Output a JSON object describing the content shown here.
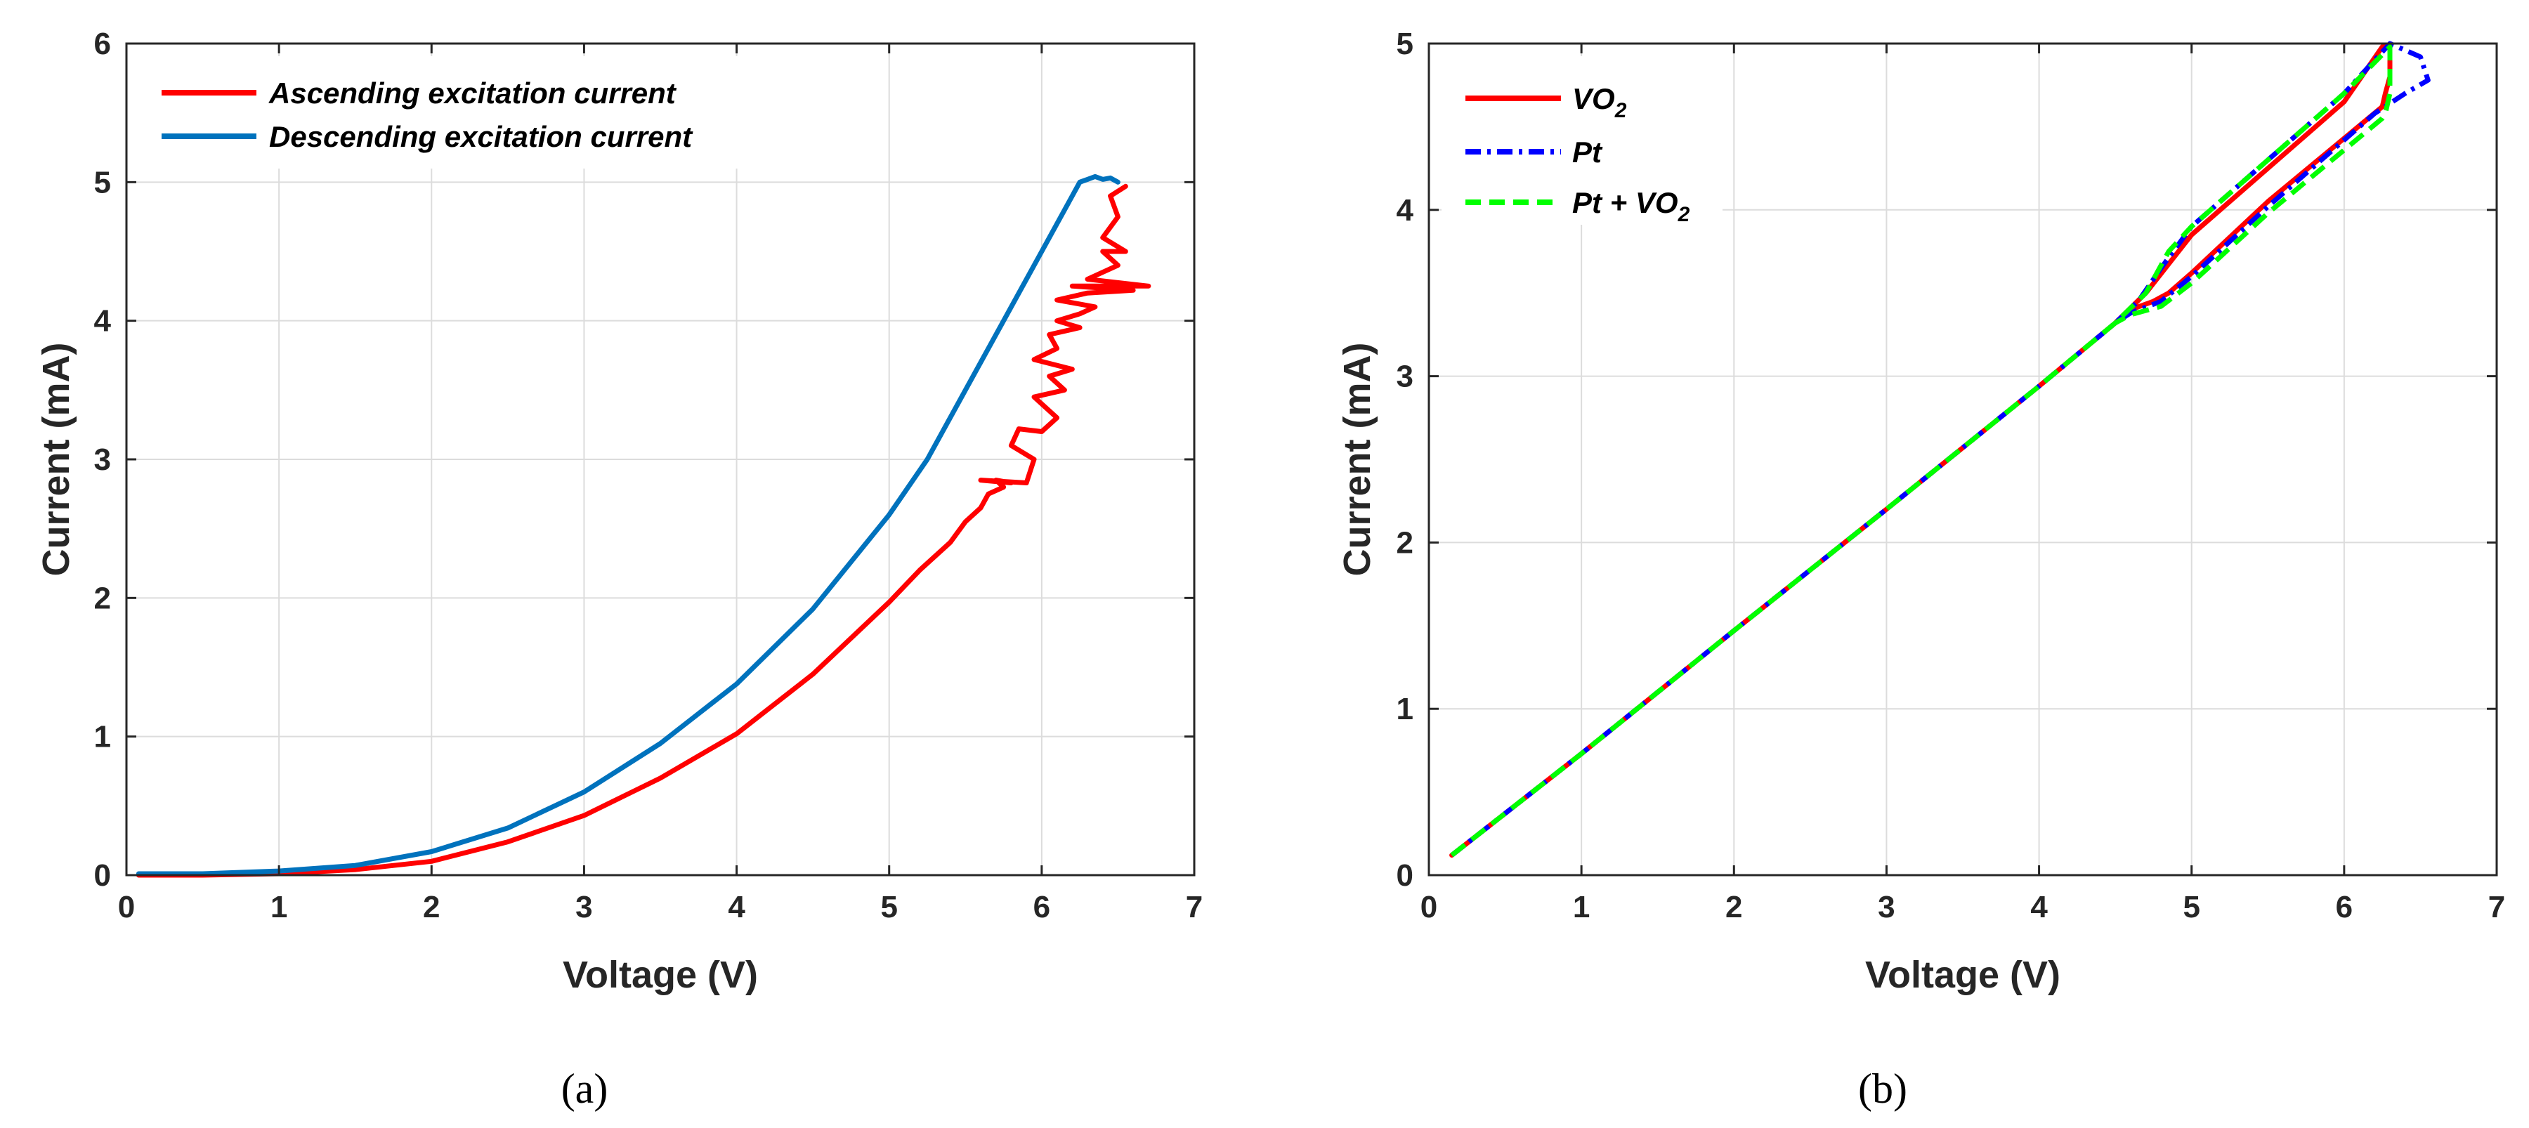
{
  "chart_data": [
    {
      "type": "line",
      "caption": "(a)",
      "xlabel": "Voltage (V)",
      "ylabel": "Current (mA)",
      "xlim": [
        0,
        7
      ],
      "ylim": [
        0,
        6
      ],
      "xticks": [
        0,
        1,
        2,
        3,
        4,
        5,
        6,
        7
      ],
      "yticks": [
        0,
        1,
        2,
        3,
        4,
        5,
        6
      ],
      "grid": true,
      "legend_position": "top-left",
      "colors": {
        "grid": "#dcdcdc",
        "axis": "#262626"
      },
      "series": [
        {
          "name": "Ascending excitation current",
          "color": "#ff0000",
          "style": "solid",
          "x": [
            0.08,
            0.5,
            1.0,
            1.5,
            2.0,
            2.5,
            3.0,
            3.5,
            4.0,
            4.5,
            5.0,
            5.2,
            5.4,
            5.5,
            5.6,
            5.65,
            5.75,
            5.7,
            5.8,
            5.6,
            5.9,
            5.95,
            5.8,
            5.85,
            6.0,
            6.1,
            5.95,
            6.15,
            6.05,
            6.2,
            5.95,
            6.1,
            6.05,
            6.25,
            6.1,
            6.25,
            6.35,
            6.1,
            6.3,
            6.6,
            6.2,
            6.7,
            6.3,
            6.5,
            6.4,
            6.55,
            6.4,
            6.5,
            6.45,
            6.55
          ],
          "y": [
            0.0,
            0.0,
            0.01,
            0.04,
            0.1,
            0.24,
            0.43,
            0.7,
            1.02,
            1.45,
            1.97,
            2.2,
            2.4,
            2.55,
            2.65,
            2.75,
            2.8,
            2.85,
            2.83,
            2.85,
            2.83,
            3.0,
            3.1,
            3.22,
            3.2,
            3.3,
            3.45,
            3.5,
            3.6,
            3.65,
            3.72,
            3.8,
            3.9,
            3.95,
            4.0,
            4.05,
            4.1,
            4.15,
            4.2,
            4.22,
            4.25,
            4.25,
            4.3,
            4.4,
            4.5,
            4.5,
            4.6,
            4.75,
            4.9,
            4.97
          ]
        },
        {
          "name": "Descending excitation current",
          "color": "#0072bd",
          "style": "solid",
          "x": [
            0.08,
            0.5,
            1.0,
            1.5,
            2.0,
            2.5,
            3.0,
            3.5,
            4.0,
            4.5,
            5.0,
            5.25,
            5.5,
            5.75,
            6.0,
            6.25,
            6.3,
            6.35,
            6.4,
            6.45,
            6.5
          ],
          "y": [
            0.01,
            0.01,
            0.03,
            0.07,
            0.17,
            0.34,
            0.6,
            0.95,
            1.38,
            1.92,
            2.6,
            3.0,
            3.5,
            4.0,
            4.5,
            5.0,
            5.02,
            5.04,
            5.02,
            5.03,
            5.0
          ]
        }
      ]
    },
    {
      "type": "line",
      "caption": "(b)",
      "xlabel": "Voltage (V)",
      "ylabel": "Current (mA)",
      "xlim": [
        0,
        7
      ],
      "ylim": [
        0,
        5
      ],
      "xticks": [
        0,
        1,
        2,
        3,
        4,
        5,
        6,
        7
      ],
      "yticks": [
        0,
        1,
        2,
        3,
        4,
        5
      ],
      "grid": true,
      "legend_position": "top-left",
      "colors": {
        "grid": "#dcdcdc",
        "axis": "#262626"
      },
      "series": [
        {
          "name": "VO",
          "name_sub": "2",
          "color": "#ff0000",
          "style": "solid",
          "x": [
            0.15,
            1.0,
            2.0,
            3.0,
            4.0,
            4.5,
            4.7,
            5.0,
            5.5,
            6.0,
            6.25,
            6.3,
            6.3,
            6.27,
            6.25,
            5.5,
            5.0,
            4.85,
            4.75,
            4.6,
            4.5
          ],
          "y": [
            0.12,
            0.73,
            1.47,
            2.2,
            2.94,
            3.32,
            3.5,
            3.85,
            4.25,
            4.65,
            4.98,
            4.98,
            4.8,
            4.7,
            4.62,
            4.05,
            3.62,
            3.5,
            3.45,
            3.4,
            3.32
          ]
        },
        {
          "name": "Pt",
          "name_sub": "",
          "color": "#0000ff",
          "style": "dashdot",
          "x": [
            0.15,
            1.0,
            2.0,
            3.0,
            4.0,
            4.5,
            4.65,
            4.8,
            5.0,
            5.5,
            6.0,
            6.3,
            6.5,
            6.55,
            6.4,
            6.2,
            5.5,
            5.0,
            4.8,
            4.6,
            4.5
          ],
          "y": [
            0.12,
            0.73,
            1.47,
            2.2,
            2.94,
            3.32,
            3.45,
            3.65,
            3.9,
            4.3,
            4.7,
            5.0,
            4.92,
            4.78,
            4.7,
            4.58,
            4.02,
            3.6,
            3.45,
            3.38,
            3.32
          ]
        },
        {
          "name": "Pt + VO",
          "name_sub": "2",
          "color": "#00ff00",
          "style": "dashed",
          "x": [
            0.15,
            1.0,
            2.0,
            3.0,
            4.0,
            4.5,
            4.7,
            4.85,
            5.0,
            5.5,
            6.0,
            6.3,
            6.3,
            6.27,
            6.25,
            5.5,
            5.0,
            4.8,
            4.6,
            4.5
          ],
          "y": [
            0.12,
            0.73,
            1.47,
            2.2,
            2.94,
            3.32,
            3.5,
            3.75,
            3.9,
            4.3,
            4.7,
            4.98,
            4.7,
            4.58,
            4.55,
            3.98,
            3.56,
            3.42,
            3.37,
            3.32
          ]
        }
      ]
    }
  ]
}
